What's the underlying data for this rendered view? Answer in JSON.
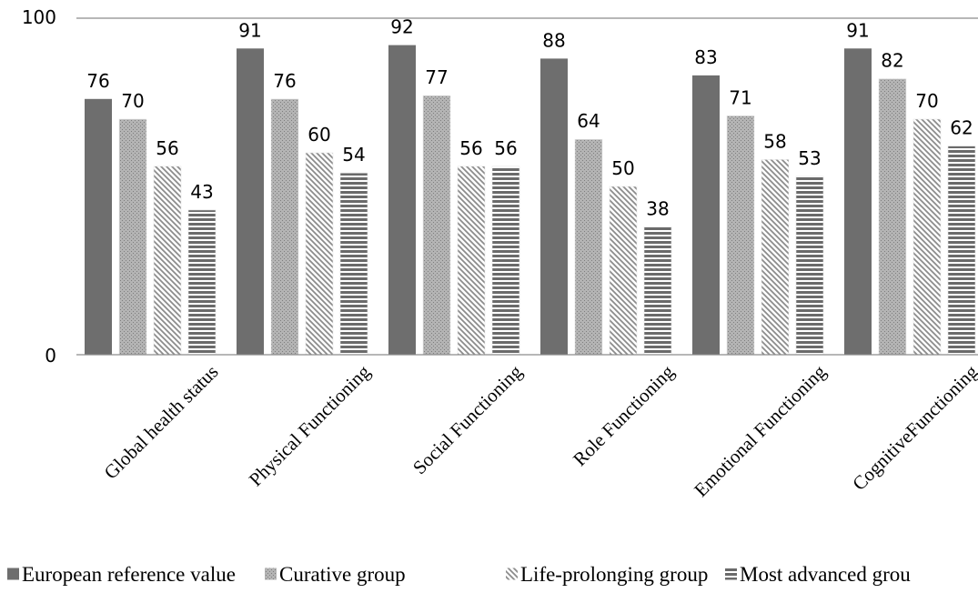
{
  "chart_data": {
    "type": "bar",
    "title": "",
    "xlabel": "",
    "ylabel": "",
    "ylim": [
      0,
      100
    ],
    "yticks": [
      "0",
      "100"
    ],
    "grid": false,
    "legend_position": "bottom",
    "categories": [
      "Global health status",
      "Physical Functioning",
      "Social Functioning",
      "Role Functioning",
      "Emotional Functioning",
      "CognitiveFunctioning"
    ],
    "series": [
      {
        "name": "European reference value",
        "values": [
          76,
          91,
          92,
          88,
          83,
          91
        ],
        "color": "#6e6e6e",
        "pattern": "solid"
      },
      {
        "name": "Curative group",
        "values": [
          70,
          76,
          77,
          64,
          71,
          82
        ],
        "color": "#a6a6a6",
        "pattern": "dots"
      },
      {
        "name": "Life-prolonging group",
        "values": [
          56,
          60,
          56,
          50,
          58,
          70
        ],
        "color": "#a0a0a0",
        "pattern": "diagonal"
      },
      {
        "name": "Most advanced grou",
        "values": [
          43,
          54,
          56,
          38,
          53,
          62
        ],
        "color": "#7a7a7a",
        "pattern": "horizontal"
      }
    ]
  }
}
